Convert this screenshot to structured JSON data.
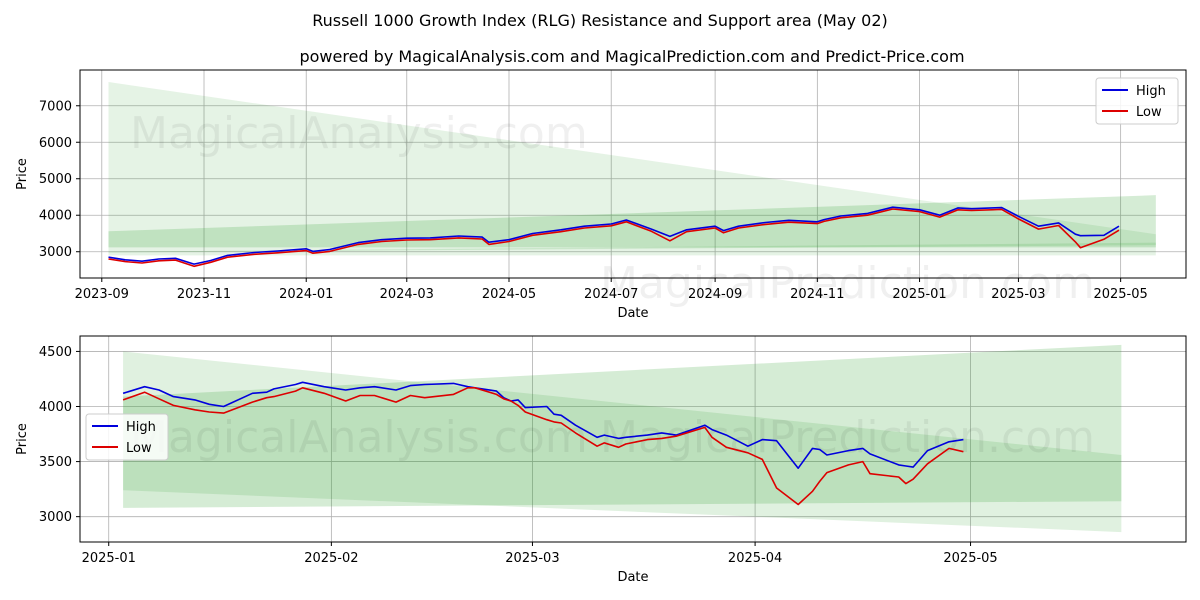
{
  "title": "Russell 1000 Growth Index (RLG) Resistance and Support area (May 02)",
  "subtitle": "powered by MagicalAnalysis.com and MagicalPrediction.com and Predict-Price.com",
  "watermarks": [
    "MagicalAnalysis.com",
    "MagicalPrediction.com"
  ],
  "colors": {
    "high": "#0000dd",
    "low": "#dd0000",
    "band": "#2ca02c"
  },
  "chart_data": [
    {
      "type": "line",
      "xlabel": "Date",
      "ylabel": "Price",
      "xlim": [
        "2023-08-19",
        "2025-06-09"
      ],
      "ylim": [
        2280,
        7980
      ],
      "x_ticks": [
        {
          "date": "2023-09-01",
          "label": "2023-09"
        },
        {
          "date": "2023-11-01",
          "label": "2023-11"
        },
        {
          "date": "2024-01-01",
          "label": "2024-01"
        },
        {
          "date": "2024-03-01",
          "label": "2024-03"
        },
        {
          "date": "2024-05-01",
          "label": "2024-05"
        },
        {
          "date": "2024-07-01",
          "label": "2024-07"
        },
        {
          "date": "2024-09-01",
          "label": "2024-09"
        },
        {
          "date": "2024-11-01",
          "label": "2024-11"
        },
        {
          "date": "2025-01-01",
          "label": "2025-01"
        },
        {
          "date": "2025-03-01",
          "label": "2025-03"
        },
        {
          "date": "2025-05-01",
          "label": "2025-05"
        }
      ],
      "y_ticks": [
        3000,
        4000,
        5000,
        6000,
        7000
      ],
      "grid": true,
      "legend": "top-right",
      "bands": [
        {
          "x": [
            "2023-09-05",
            "2025-05-22"
          ],
          "upper": [
            7650,
            3480
          ],
          "lower": [
            2900,
            2900
          ],
          "opacity": 0.12
        },
        {
          "x": [
            "2023-09-05",
            "2025-05-22"
          ],
          "upper": [
            3560,
            4550
          ],
          "lower": [
            3120,
            3120
          ],
          "opacity": 0.2
        },
        {
          "x": [
            "2023-09-05",
            "2025-05-22"
          ],
          "upper": [
            3000,
            3250
          ],
          "lower": [
            2980,
            3180
          ],
          "opacity": 0.15
        }
      ],
      "series": [
        {
          "name": "High",
          "x": [
            "2023-09-05",
            "2023-09-15",
            "2023-09-25",
            "2023-10-05",
            "2023-10-15",
            "2023-10-26",
            "2023-11-05",
            "2023-11-15",
            "2023-12-01",
            "2023-12-15",
            "2024-01-01",
            "2024-01-05",
            "2024-01-15",
            "2024-02-01",
            "2024-02-15",
            "2024-03-01",
            "2024-03-15",
            "2024-04-01",
            "2024-04-15",
            "2024-04-19",
            "2024-05-01",
            "2024-05-15",
            "2024-06-01",
            "2024-06-15",
            "2024-07-01",
            "2024-07-10",
            "2024-07-25",
            "2024-08-05",
            "2024-08-15",
            "2024-09-01",
            "2024-09-06",
            "2024-09-15",
            "2024-10-01",
            "2024-10-15",
            "2024-11-01",
            "2024-11-05",
            "2024-11-15",
            "2024-12-01",
            "2024-12-16",
            "2025-01-01",
            "2025-01-13",
            "2025-01-24",
            "2025-02-01",
            "2025-02-19",
            "2025-03-01",
            "2025-03-13",
            "2025-03-25",
            "2025-04-04",
            "2025-04-07",
            "2025-04-21",
            "2025-04-30"
          ],
          "values": [
            2850,
            2780,
            2740,
            2800,
            2820,
            2660,
            2760,
            2900,
            2980,
            3020,
            3080,
            3010,
            3060,
            3250,
            3330,
            3370,
            3380,
            3430,
            3400,
            3260,
            3330,
            3500,
            3600,
            3700,
            3760,
            3870,
            3620,
            3420,
            3600,
            3700,
            3580,
            3700,
            3800,
            3860,
            3820,
            3880,
            3980,
            4050,
            4220,
            4150,
            4000,
            4200,
            4180,
            4210,
            3970,
            3700,
            3790,
            3480,
            3440,
            3450,
            3700
          ]
        },
        {
          "name": "Low",
          "x": [
            "2023-09-05",
            "2023-09-15",
            "2023-09-25",
            "2023-10-05",
            "2023-10-15",
            "2023-10-26",
            "2023-11-05",
            "2023-11-15",
            "2023-12-01",
            "2023-12-15",
            "2024-01-01",
            "2024-01-05",
            "2024-01-15",
            "2024-02-01",
            "2024-02-15",
            "2024-03-01",
            "2024-03-15",
            "2024-04-01",
            "2024-04-15",
            "2024-04-19",
            "2024-05-01",
            "2024-05-15",
            "2024-06-01",
            "2024-06-15",
            "2024-07-01",
            "2024-07-10",
            "2024-07-25",
            "2024-08-05",
            "2024-08-15",
            "2024-09-01",
            "2024-09-06",
            "2024-09-15",
            "2024-10-01",
            "2024-10-15",
            "2024-11-01",
            "2024-11-05",
            "2024-11-15",
            "2024-12-01",
            "2024-12-16",
            "2025-01-01",
            "2025-01-13",
            "2025-01-24",
            "2025-02-01",
            "2025-02-19",
            "2025-03-01",
            "2025-03-13",
            "2025-03-25",
            "2025-04-04",
            "2025-04-07",
            "2025-04-21",
            "2025-04-30"
          ],
          "values": [
            2800,
            2730,
            2690,
            2750,
            2770,
            2600,
            2710,
            2850,
            2930,
            2970,
            3030,
            2960,
            3010,
            3200,
            3280,
            3320,
            3330,
            3380,
            3350,
            3200,
            3280,
            3450,
            3550,
            3650,
            3710,
            3820,
            3560,
            3300,
            3550,
            3650,
            3520,
            3650,
            3750,
            3810,
            3770,
            3830,
            3930,
            4000,
            4170,
            4100,
            3950,
            4150,
            4130,
            4160,
            3900,
            3620,
            3720,
            3270,
            3110,
            3340,
            3590
          ]
        }
      ]
    },
    {
      "type": "line",
      "xlabel": "Date",
      "ylabel": "Price",
      "xlim": [
        "2024-12-28",
        "2025-05-31"
      ],
      "ylim": [
        2770,
        4640
      ],
      "x_ticks": [
        {
          "date": "2025-01-01",
          "label": "2025-01"
        },
        {
          "date": "2025-02-01",
          "label": "2025-02"
        },
        {
          "date": "2025-03-01",
          "label": "2025-03"
        },
        {
          "date": "2025-04-01",
          "label": "2025-04"
        },
        {
          "date": "2025-05-01",
          "label": "2025-05"
        }
      ],
      "y_ticks": [
        3000,
        3500,
        4000,
        4500
      ],
      "grid": true,
      "legend": "center-left",
      "bands": [
        {
          "x": [
            "2025-01-03",
            "2025-05-22"
          ],
          "upper": [
            4500,
            3560
          ],
          "lower": [
            3240,
            2860
          ],
          "opacity": 0.15
        },
        {
          "x": [
            "2025-01-03",
            "2025-05-22"
          ],
          "upper": [
            4090,
            4560
          ],
          "lower": [
            3080,
            3140
          ],
          "opacity": 0.2
        }
      ],
      "series": [
        {
          "name": "High",
          "x": [
            "2025-01-03",
            "2025-01-06",
            "2025-01-08",
            "2025-01-10",
            "2025-01-13",
            "2025-01-15",
            "2025-01-17",
            "2025-01-21",
            "2025-01-23",
            "2025-01-24",
            "2025-01-27",
            "2025-01-28",
            "2025-01-31",
            "2025-02-03",
            "2025-02-05",
            "2025-02-07",
            "2025-02-10",
            "2025-02-12",
            "2025-02-14",
            "2025-02-18",
            "2025-02-20",
            "2025-02-21",
            "2025-02-24",
            "2025-02-25",
            "2025-02-26",
            "2025-02-27",
            "2025-02-28",
            "2025-03-03",
            "2025-03-04",
            "2025-03-05",
            "2025-03-07",
            "2025-03-10",
            "2025-03-11",
            "2025-03-13",
            "2025-03-14",
            "2025-03-17",
            "2025-03-19",
            "2025-03-21",
            "2025-03-25",
            "2025-03-26",
            "2025-03-28",
            "2025-03-31",
            "2025-04-02",
            "2025-04-04",
            "2025-04-07",
            "2025-04-09",
            "2025-04-10",
            "2025-04-11",
            "2025-04-14",
            "2025-04-16",
            "2025-04-17",
            "2025-04-21",
            "2025-04-22",
            "2025-04-23",
            "2025-04-25",
            "2025-04-28",
            "2025-04-30"
          ],
          "values": [
            4120,
            4180,
            4150,
            4090,
            4060,
            4020,
            4000,
            4120,
            4130,
            4160,
            4200,
            4220,
            4180,
            4150,
            4170,
            4180,
            4150,
            4190,
            4200,
            4210,
            4180,
            4170,
            4140,
            4080,
            4050,
            4060,
            3990,
            4000,
            3930,
            3920,
            3830,
            3720,
            3740,
            3710,
            3720,
            3740,
            3760,
            3740,
            3830,
            3790,
            3740,
            3640,
            3700,
            3690,
            3440,
            3620,
            3610,
            3560,
            3600,
            3620,
            3570,
            3470,
            3460,
            3450,
            3600,
            3680,
            3700
          ]
        },
        {
          "name": "Low",
          "x": [
            "2025-01-03",
            "2025-01-06",
            "2025-01-08",
            "2025-01-10",
            "2025-01-13",
            "2025-01-15",
            "2025-01-17",
            "2025-01-21",
            "2025-01-23",
            "2025-01-24",
            "2025-01-27",
            "2025-01-28",
            "2025-01-31",
            "2025-02-03",
            "2025-02-05",
            "2025-02-07",
            "2025-02-10",
            "2025-02-12",
            "2025-02-14",
            "2025-02-18",
            "2025-02-20",
            "2025-02-21",
            "2025-02-24",
            "2025-02-25",
            "2025-02-26",
            "2025-02-27",
            "2025-02-28",
            "2025-03-03",
            "2025-03-04",
            "2025-03-05",
            "2025-03-07",
            "2025-03-10",
            "2025-03-11",
            "2025-03-13",
            "2025-03-14",
            "2025-03-17",
            "2025-03-19",
            "2025-03-21",
            "2025-03-25",
            "2025-03-26",
            "2025-03-28",
            "2025-03-31",
            "2025-04-02",
            "2025-04-04",
            "2025-04-07",
            "2025-04-09",
            "2025-04-10",
            "2025-04-11",
            "2025-04-14",
            "2025-04-16",
            "2025-04-17",
            "2025-04-21",
            "2025-04-22",
            "2025-04-23",
            "2025-04-25",
            "2025-04-28",
            "2025-04-30"
          ],
          "values": [
            4060,
            4130,
            4070,
            4010,
            3970,
            3950,
            3940,
            4040,
            4080,
            4090,
            4140,
            4170,
            4120,
            4050,
            4100,
            4100,
            4040,
            4100,
            4080,
            4110,
            4170,
            4170,
            4110,
            4070,
            4050,
            4010,
            3950,
            3880,
            3860,
            3850,
            3760,
            3640,
            3670,
            3630,
            3660,
            3700,
            3710,
            3730,
            3810,
            3720,
            3630,
            3580,
            3520,
            3260,
            3110,
            3230,
            3320,
            3400,
            3470,
            3500,
            3390,
            3360,
            3300,
            3340,
            3480,
            3620,
            3590
          ]
        }
      ]
    }
  ]
}
